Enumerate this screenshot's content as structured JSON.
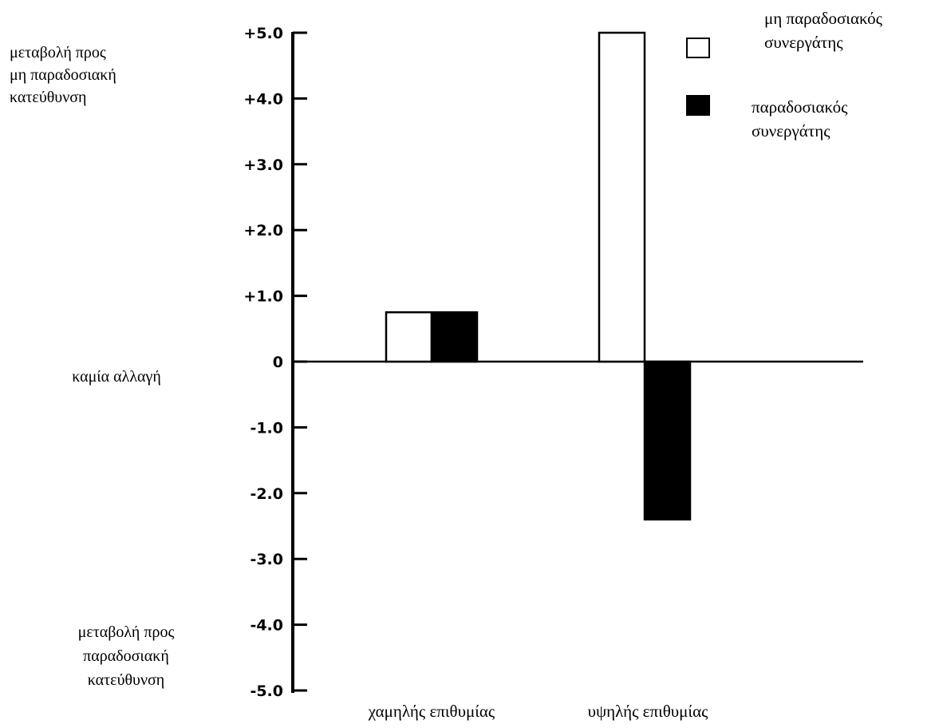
{
  "chart_data": {
    "type": "bar",
    "categories": [
      "χαμηλής επιθυμίας",
      "υψηλής επιθυμίας"
    ],
    "series": [
      {
        "name": "μη παραδοσιακός συνεργάτης",
        "values": [
          0.75,
          5.0
        ],
        "color": "#ffffff"
      },
      {
        "name": "παραδοσιακός συνεργάτης",
        "values": [
          0.75,
          -2.4
        ],
        "color": "#000000"
      }
    ],
    "ylim": [
      -5.0,
      5.0
    ],
    "yticks": [
      "+5.0",
      "+4.0",
      "+3.0",
      "+2.0",
      "+1.0",
      "0",
      "-1.0",
      "-2.0",
      "-3.0",
      "-4.0",
      "-5.0"
    ],
    "ytick_values": [
      5,
      4,
      3,
      2,
      1,
      0,
      -1,
      -2,
      -3,
      -4,
      -5
    ],
    "y_annotations": {
      "top": [
        "μεταβολή προς",
        "μη παραδοσιακή",
        "κατεύθυνση"
      ],
      "middle": [
        "καμία αλλαγή"
      ],
      "bottom": [
        "μεταβολή προς",
        "παραδοσιακή",
        "κατεύθυνση"
      ]
    },
    "legend": {
      "position": "top-right",
      "entries": [
        {
          "lines": [
            "μη παραδοσιακός",
            "συνεργάτης"
          ],
          "swatch": "#ffffff"
        },
        {
          "lines": [
            "παραδοσιακός",
            "συνεργάτης"
          ],
          "swatch": "#000000"
        }
      ]
    },
    "grid": false
  }
}
